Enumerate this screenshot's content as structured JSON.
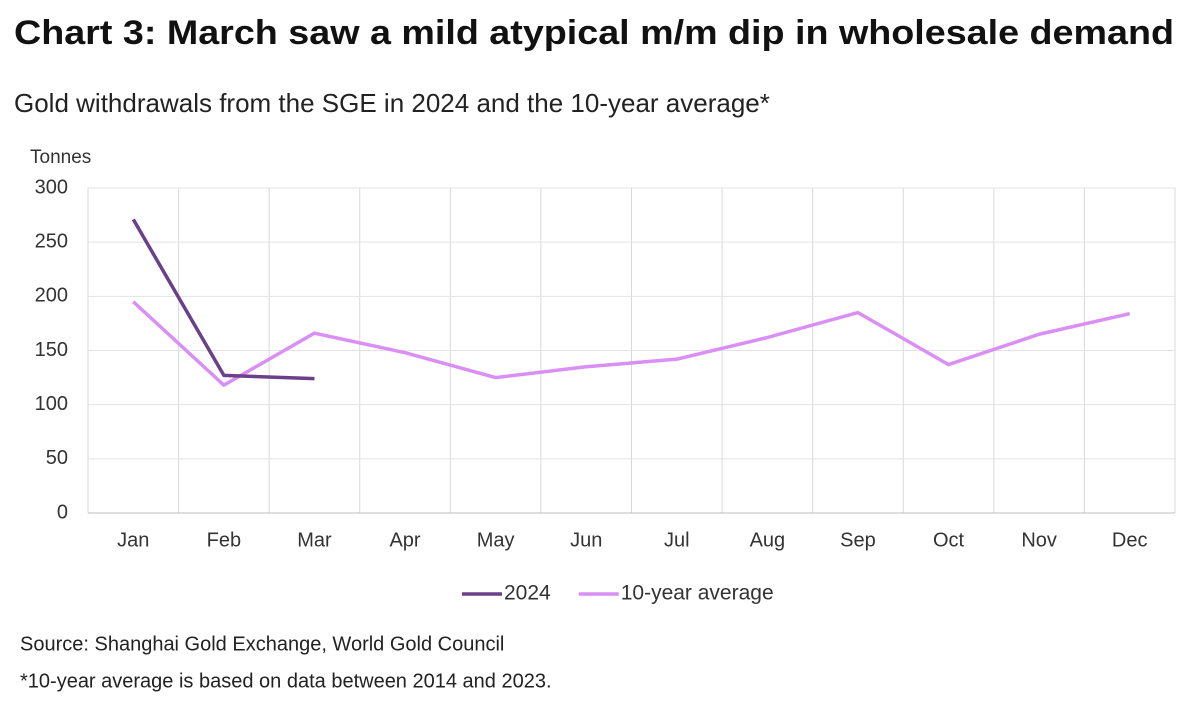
{
  "chart_data": {
    "type": "line",
    "title": "Chart 3: March saw a mild atypical m/m dip in wholesale demand",
    "subtitle": "Gold withdrawals from the SGE in 2024 and the 10-year average*",
    "y_label": "Tonnes",
    "categories": [
      "Jan",
      "Feb",
      "Mar",
      "Apr",
      "May",
      "Jun",
      "Jul",
      "Aug",
      "Sep",
      "Oct",
      "Nov",
      "Dec"
    ],
    "series": [
      {
        "name": "2024",
        "color": "#6b3f8a",
        "values": [
          271,
          127,
          124,
          null,
          null,
          null,
          null,
          null,
          null,
          null,
          null,
          null
        ]
      },
      {
        "name": "10-year average",
        "color": "#d98ff5",
        "values": [
          195,
          118,
          166,
          148,
          125,
          135,
          142,
          162,
          185,
          137,
          165,
          184
        ]
      }
    ],
    "ylim": [
      0,
      300
    ],
    "yticks": [
      0,
      50,
      100,
      150,
      200,
      250,
      300
    ],
    "grid": true,
    "legend": "bottom",
    "source": "Source: Shanghai Gold Exchange, World Gold Council",
    "note": "*10-year average is based on data between 2014 and 2023."
  }
}
